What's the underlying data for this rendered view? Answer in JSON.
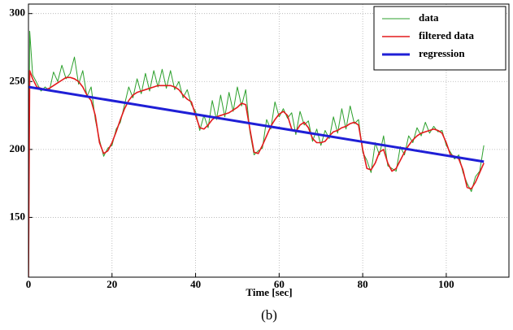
{
  "chart_data": {
    "type": "line",
    "xlabel": "Time [sec]",
    "caption": "(b)",
    "xlim": [
      0,
      115
    ],
    "ylim": [
      106,
      307
    ],
    "xticks": [
      0,
      20,
      40,
      60,
      80,
      100
    ],
    "yticks": [
      150,
      200,
      250,
      300
    ],
    "grid": true,
    "legend": "upper right",
    "x": [
      0,
      0.3,
      1,
      2,
      3,
      4,
      5,
      6,
      7,
      8,
      9,
      10,
      11,
      12,
      13,
      14,
      15,
      16,
      17,
      18,
      19,
      20,
      21,
      22,
      23,
      24,
      25,
      26,
      27,
      28,
      29,
      30,
      31,
      32,
      33,
      34,
      35,
      36,
      37,
      38,
      39,
      40,
      41,
      42,
      43,
      44,
      45,
      46,
      47,
      48,
      49,
      50,
      51,
      52,
      53,
      54,
      55,
      56,
      57,
      58,
      59,
      60,
      61,
      62,
      63,
      64,
      65,
      66,
      67,
      68,
      69,
      70,
      71,
      72,
      73,
      74,
      75,
      76,
      77,
      78,
      79,
      80,
      81,
      82,
      83,
      84,
      85,
      86,
      87,
      88,
      89,
      90,
      91,
      92,
      93,
      94,
      95,
      96,
      97,
      98,
      99,
      100,
      101,
      102,
      103,
      104,
      105,
      106,
      107,
      108,
      109
    ],
    "series": [
      {
        "name": "data",
        "color": "#2ca02c",
        "width": 1,
        "values": [
          106,
          287,
          255,
          249,
          243,
          246,
          243,
          257,
          250,
          262,
          252,
          256,
          268,
          248,
          258,
          239,
          246,
          222,
          207,
          195,
          201,
          203,
          215,
          220,
          233,
          246,
          238,
          252,
          241,
          256,
          243,
          258,
          246,
          259,
          245,
          258,
          244,
          250,
          238,
          244,
          233,
          228,
          214,
          225,
          216,
          236,
          222,
          240,
          224,
          242,
          228,
          246,
          232,
          244,
          213,
          196,
          199,
          201,
          222,
          215,
          235,
          224,
          230,
          223,
          227,
          211,
          228,
          218,
          221,
          206,
          215,
          203,
          214,
          208,
          224,
          212,
          230,
          215,
          232,
          219,
          222,
          198,
          192,
          183,
          205,
          196,
          210,
          188,
          186,
          184,
          202,
          196,
          210,
          205,
          216,
          210,
          220,
          212,
          217,
          213,
          214,
          203,
          198,
          193,
          196,
          183,
          175,
          169,
          180,
          184,
          203
        ]
      },
      {
        "name": "filtered data",
        "color": "#e31a1c",
        "width": 1.6,
        "values": [
          106,
          258,
          252,
          246,
          245,
          244,
          245,
          247,
          249,
          251,
          253,
          253,
          252,
          250,
          246,
          240,
          236,
          225,
          205,
          197,
          199,
          205,
          213,
          222,
          230,
          236,
          240,
          242,
          243,
          244,
          245,
          246,
          247,
          247,
          247,
          247,
          246,
          244,
          240,
          237,
          235,
          225,
          216,
          215,
          218,
          222,
          224,
          225,
          226,
          227,
          229,
          231,
          234,
          233,
          215,
          198,
          197,
          203,
          210,
          217,
          222,
          226,
          228,
          225,
          215,
          213,
          218,
          220,
          216,
          208,
          205,
          205,
          206,
          210,
          213,
          214,
          216,
          217,
          219,
          220,
          218,
          200,
          186,
          185,
          190,
          198,
          200,
          190,
          184,
          186,
          192,
          198,
          203,
          207,
          210,
          212,
          213,
          214,
          215,
          214,
          212,
          205,
          196,
          195,
          193,
          185,
          172,
          171,
          176,
          183,
          190
        ]
      },
      {
        "name": "regression",
        "color": "#1f1fd6",
        "width": 3,
        "x": [
          0,
          109
        ],
        "values": [
          246,
          191
        ]
      }
    ]
  }
}
